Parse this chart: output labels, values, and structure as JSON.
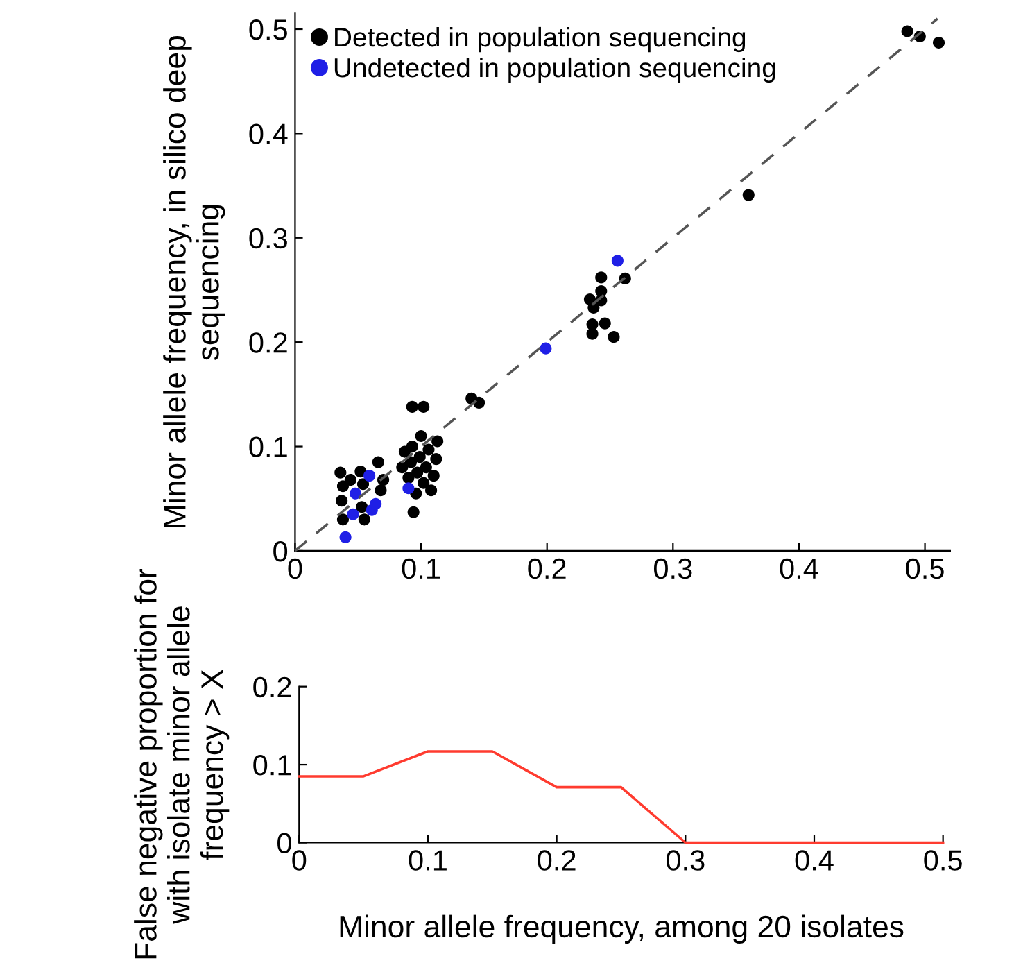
{
  "chart_data": [
    {
      "type": "scatter",
      "ylabel": "Minor allele frequency, in silico deep sequencing",
      "xlim": [
        0,
        0.52
      ],
      "ylim": [
        0,
        0.515
      ],
      "xticks": [
        0,
        0.1,
        0.2,
        0.3,
        0.4,
        0.5
      ],
      "yticks": [
        0,
        0.1,
        0.2,
        0.3,
        0.4,
        0.5
      ],
      "legend": "top left",
      "marker": "circle",
      "grid": false,
      "series": [
        {
          "name": "Detected in population sequencing",
          "color": "#000000",
          "x": [
            0.486,
            0.496,
            0.511,
            0.36,
            0.243,
            0.262,
            0.234,
            0.243,
            0.243,
            0.237,
            0.236,
            0.246,
            0.253,
            0.236,
            0.14,
            0.146,
            0.093,
            0.102,
            0.036,
            0.038,
            0.037,
            0.038,
            0.044,
            0.052,
            0.054,
            0.053,
            0.055,
            0.066,
            0.068,
            0.07,
            0.085,
            0.087,
            0.09,
            0.092,
            0.093,
            0.094,
            0.097,
            0.099,
            0.1,
            0.102,
            0.104,
            0.106,
            0.108,
            0.11,
            0.112,
            0.113,
            0.096
          ],
          "values": [
            0.498,
            0.493,
            0.487,
            0.341,
            0.262,
            0.261,
            0.241,
            0.249,
            0.24,
            0.233,
            0.217,
            0.218,
            0.205,
            0.208,
            0.146,
            0.142,
            0.138,
            0.138,
            0.075,
            0.062,
            0.048,
            0.03,
            0.068,
            0.076,
            0.064,
            0.042,
            0.03,
            0.085,
            0.058,
            0.068,
            0.08,
            0.095,
            0.07,
            0.085,
            0.1,
            0.037,
            0.075,
            0.09,
            0.11,
            0.065,
            0.08,
            0.097,
            0.058,
            0.072,
            0.088,
            0.105,
            0.055
          ]
        },
        {
          "name": "Undetected in population sequencing",
          "color": "#1f1fe6",
          "x": [
            0.256,
            0.199,
            0.04,
            0.059,
            0.048,
            0.046,
            0.061,
            0.064,
            0.09
          ],
          "values": [
            0.278,
            0.194,
            0.013,
            0.072,
            0.055,
            0.035,
            0.039,
            0.045,
            0.06
          ]
        },
        {
          "type": "line",
          "line_style": "dashed",
          "marker": "none",
          "color": "#555555",
          "x": [
            0,
            0.51
          ],
          "values": [
            0,
            0.51
          ]
        }
      ]
    },
    {
      "type": "line",
      "xlabel": "Minor allele frequency, among 20 isolates",
      "ylabel": "False negative proportion for with isolate minor allele frequency > X",
      "xlim": [
        0,
        0.5
      ],
      "ylim": [
        0,
        0.2
      ],
      "xticks": [
        0,
        0.1,
        0.2,
        0.3,
        0.4,
        0.5
      ],
      "yticks": [
        0,
        0.1,
        0.2
      ],
      "marker": "none",
      "line_style": "solid",
      "grid": false,
      "legend": false,
      "series": [
        {
          "color": "#ff3b2f",
          "x": [
            0,
            0.05,
            0.1,
            0.15,
            0.2,
            0.25,
            0.3,
            0.35,
            0.4,
            0.45,
            0.5
          ],
          "values": [
            0.085,
            0.085,
            0.117,
            0.117,
            0.071,
            0.071,
            0,
            0,
            0,
            0,
            0
          ]
        }
      ]
    }
  ]
}
